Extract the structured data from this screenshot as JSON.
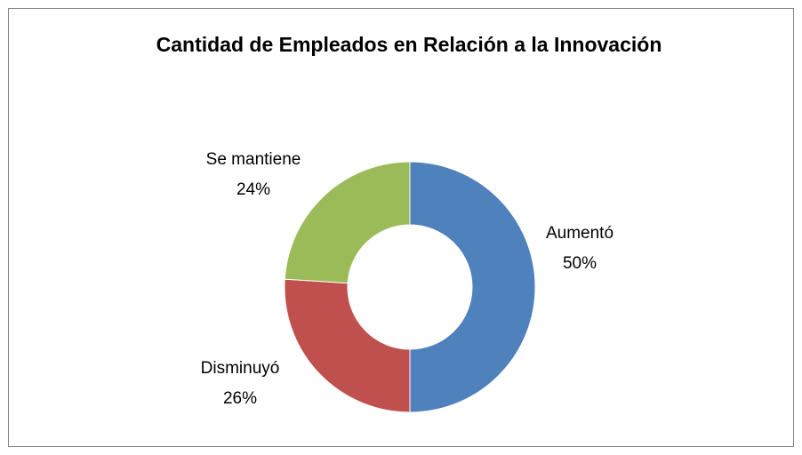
{
  "chart_data": {
    "type": "donut",
    "title": "Cantidad de Empleados en Relación a la Innovación",
    "categories": [
      "Aumentó",
      "Disminuyó",
      "Se mantiene"
    ],
    "values": [
      50,
      26,
      24
    ],
    "value_labels": [
      "50%",
      "26%",
      "24%"
    ],
    "colors": [
      "#4f81bd",
      "#c0504d",
      "#9bbb59"
    ]
  }
}
